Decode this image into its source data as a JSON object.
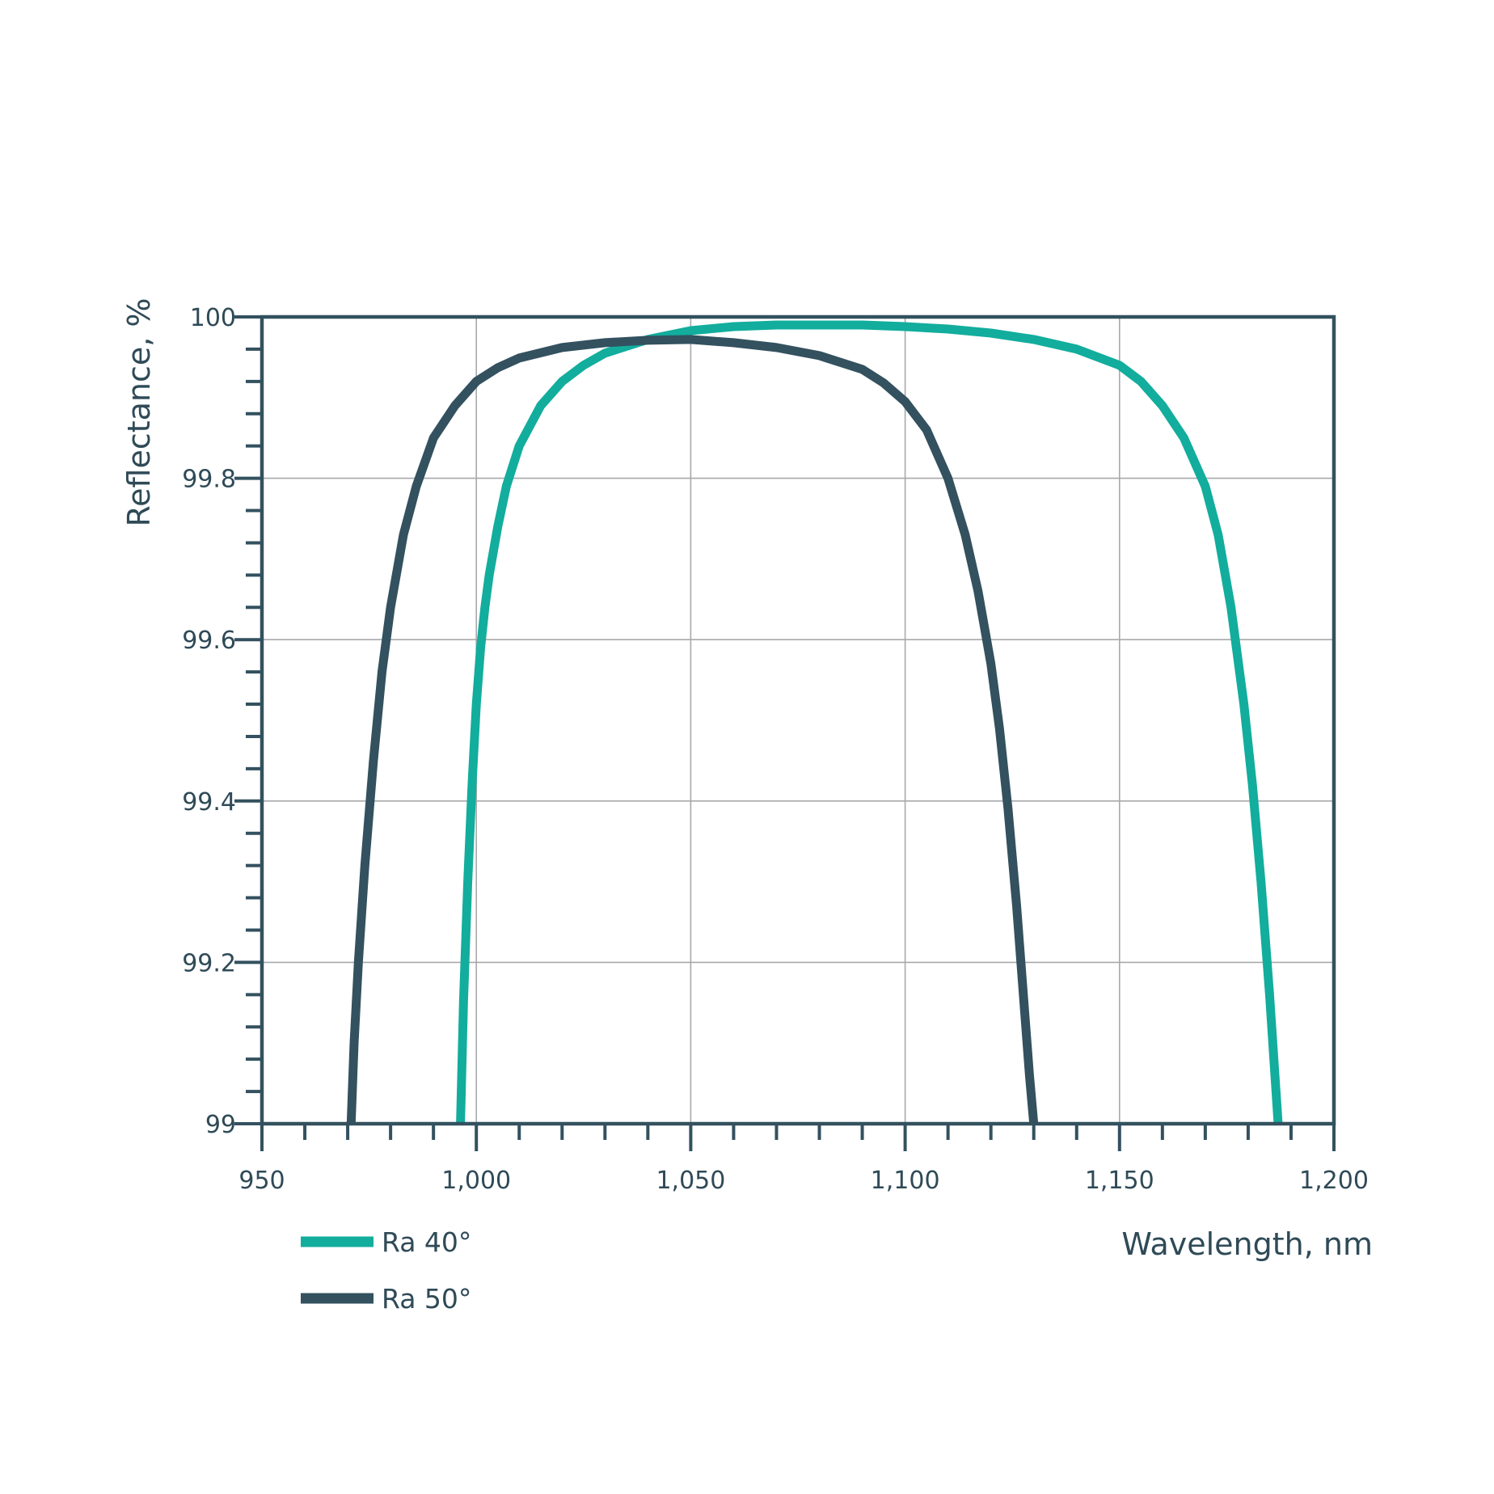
{
  "chart_data": {
    "type": "line",
    "xlabel": "Wavelength, nm",
    "ylabel": "Reflectance, %",
    "xlim": [
      950,
      1200
    ],
    "ylim": [
      99,
      100
    ],
    "x_ticks": [
      950,
      1000,
      1050,
      1100,
      1150,
      1200
    ],
    "x_tick_labels": [
      "950",
      "1,000",
      "1,050",
      "1,100",
      "1,150",
      "1,200"
    ],
    "y_ticks": [
      99,
      99.2,
      99.4,
      99.6,
      99.8,
      100
    ],
    "y_tick_labels": [
      "99",
      "99.2",
      "99.4",
      "99.6",
      "99.8",
      "100"
    ],
    "grid": true,
    "legend_position": "bottom-left",
    "series": [
      {
        "name": "Ra 40°",
        "color": "#12ad9d",
        "x": [
          996.3,
          997,
          998,
          999,
          1000,
          1001,
          1002,
          1003,
          1005,
          1007,
          1010,
          1015,
          1020,
          1025,
          1030,
          1040,
          1050,
          1060,
          1070,
          1080,
          1090,
          1100,
          1110,
          1120,
          1130,
          1140,
          1150,
          1155,
          1160,
          1165,
          1170,
          1173,
          1176,
          1179,
          1181,
          1183,
          1185,
          1186,
          1187
        ],
        "y": [
          99,
          99.15,
          99.3,
          99.42,
          99.52,
          99.59,
          99.64,
          99.68,
          99.74,
          99.79,
          99.84,
          99.89,
          99.92,
          99.94,
          99.955,
          99.972,
          99.983,
          99.988,
          99.99,
          99.99,
          99.99,
          99.988,
          99.985,
          99.98,
          99.972,
          99.96,
          99.94,
          99.92,
          99.89,
          99.85,
          99.79,
          99.73,
          99.64,
          99.52,
          99.42,
          99.3,
          99.16,
          99.08,
          99
        ]
      },
      {
        "name": "Ra 50°",
        "color": "#33515f",
        "x": [
          970.8,
          971.5,
          972.5,
          974,
          976,
          978,
          980,
          983,
          986,
          990,
          995,
          1000,
          1005,
          1010,
          1020,
          1030,
          1040,
          1050,
          1060,
          1070,
          1080,
          1090,
          1095,
          1100,
          1105,
          1110,
          1114,
          1117,
          1120,
          1122,
          1124,
          1126,
          1128,
          1129,
          1130
        ],
        "y": [
          99,
          99.1,
          99.2,
          99.32,
          99.45,
          99.56,
          99.64,
          99.73,
          99.79,
          99.85,
          99.89,
          99.92,
          99.937,
          99.949,
          99.962,
          99.968,
          99.971,
          99.972,
          99.968,
          99.962,
          99.952,
          99.935,
          99.918,
          99.895,
          99.86,
          99.8,
          99.73,
          99.66,
          99.57,
          99.49,
          99.39,
          99.27,
          99.13,
          99.06,
          99
        ]
      }
    ]
  }
}
